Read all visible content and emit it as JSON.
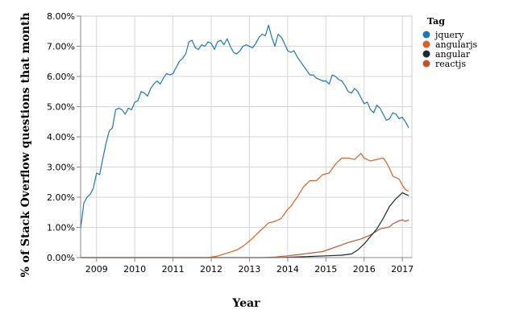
{
  "chart_data": {
    "type": "line",
    "xlabel": "Year",
    "ylabel": "% of Stack Overflow questions that month",
    "x_ticks": [
      "2009",
      "2010",
      "2011",
      "2012",
      "2013",
      "2014",
      "2015",
      "2016",
      "2017"
    ],
    "y_ticks": [
      "0.00%",
      "1.00%",
      "2.00%",
      "3.00%",
      "4.00%",
      "5.00%",
      "6.00%",
      "7.00%",
      "8.00%"
    ],
    "xlim": [
      "2008-08",
      "2017-04"
    ],
    "ylim": [
      0,
      8
    ],
    "grid": true,
    "legend": {
      "title": "Tag",
      "position": "right"
    },
    "series": [
      {
        "name": "jquery",
        "color": "#1f77b4",
        "points": [
          [
            "2008-08",
            0.95
          ],
          [
            "2008-09",
            1.8
          ],
          [
            "2008-10",
            2.0
          ],
          [
            "2008-11",
            2.1
          ],
          [
            "2008-12",
            2.3
          ],
          [
            "2009-01",
            2.8
          ],
          [
            "2009-02",
            2.75
          ],
          [
            "2009-03",
            3.3
          ],
          [
            "2009-04",
            3.8
          ],
          [
            "2009-05",
            4.2
          ],
          [
            "2009-06",
            4.3
          ],
          [
            "2009-07",
            4.9
          ],
          [
            "2009-08",
            4.95
          ],
          [
            "2009-09",
            4.9
          ],
          [
            "2009-10",
            4.75
          ],
          [
            "2009-11",
            4.95
          ],
          [
            "2009-12",
            4.9
          ],
          [
            "2010-01",
            5.15
          ],
          [
            "2010-02",
            5.2
          ],
          [
            "2010-03",
            5.5
          ],
          [
            "2010-04",
            5.45
          ],
          [
            "2010-05",
            5.35
          ],
          [
            "2010-06",
            5.6
          ],
          [
            "2010-07",
            5.75
          ],
          [
            "2010-08",
            5.85
          ],
          [
            "2010-09",
            5.75
          ],
          [
            "2010-10",
            5.95
          ],
          [
            "2010-11",
            6.1
          ],
          [
            "2010-12",
            6.05
          ],
          [
            "2011-01",
            6.1
          ],
          [
            "2011-02",
            6.3
          ],
          [
            "2011-03",
            6.5
          ],
          [
            "2011-04",
            6.6
          ],
          [
            "2011-05",
            6.75
          ],
          [
            "2011-06",
            7.15
          ],
          [
            "2011-07",
            7.2
          ],
          [
            "2011-08",
            6.95
          ],
          [
            "2011-09",
            6.9
          ],
          [
            "2011-10",
            7.05
          ],
          [
            "2011-11",
            7.0
          ],
          [
            "2011-12",
            7.15
          ],
          [
            "2012-01",
            7.1
          ],
          [
            "2012-02",
            6.9
          ],
          [
            "2012-03",
            7.15
          ],
          [
            "2012-04",
            7.2
          ],
          [
            "2012-05",
            7.05
          ],
          [
            "2012-06",
            7.25
          ],
          [
            "2012-07",
            7.0
          ],
          [
            "2012-08",
            6.8
          ],
          [
            "2012-09",
            6.75
          ],
          [
            "2012-10",
            6.85
          ],
          [
            "2012-11",
            7.0
          ],
          [
            "2012-12",
            7.05
          ],
          [
            "2013-01",
            7.0
          ],
          [
            "2013-02",
            6.95
          ],
          [
            "2013-03",
            7.1
          ],
          [
            "2013-04",
            7.3
          ],
          [
            "2013-05",
            7.4
          ],
          [
            "2013-06",
            7.35
          ],
          [
            "2013-07",
            7.7
          ],
          [
            "2013-08",
            7.3
          ],
          [
            "2013-09",
            7.0
          ],
          [
            "2013-10",
            7.4
          ],
          [
            "2013-11",
            7.3
          ],
          [
            "2013-12",
            7.1
          ],
          [
            "2014-01",
            6.85
          ],
          [
            "2014-02",
            6.8
          ],
          [
            "2014-03",
            6.85
          ],
          [
            "2014-04",
            6.65
          ],
          [
            "2014-05",
            6.5
          ],
          [
            "2014-06",
            6.35
          ],
          [
            "2014-07",
            6.2
          ],
          [
            "2014-08",
            6.05
          ],
          [
            "2014-09",
            6.05
          ],
          [
            "2014-10",
            5.95
          ],
          [
            "2014-11",
            5.9
          ],
          [
            "2014-12",
            5.85
          ],
          [
            "2015-01",
            5.85
          ],
          [
            "2015-02",
            5.75
          ],
          [
            "2015-03",
            6.05
          ],
          [
            "2015-04",
            6.0
          ],
          [
            "2015-05",
            5.9
          ],
          [
            "2015-06",
            5.85
          ],
          [
            "2015-07",
            5.7
          ],
          [
            "2015-08",
            5.5
          ],
          [
            "2015-09",
            5.45
          ],
          [
            "2015-10",
            5.6
          ],
          [
            "2015-11",
            5.5
          ],
          [
            "2015-12",
            5.3
          ],
          [
            "2016-01",
            5.1
          ],
          [
            "2016-02",
            5.15
          ],
          [
            "2016-03",
            4.9
          ],
          [
            "2016-04",
            4.8
          ],
          [
            "2016-05",
            5.05
          ],
          [
            "2016-06",
            4.95
          ],
          [
            "2016-07",
            4.75
          ],
          [
            "2016-08",
            4.55
          ],
          [
            "2016-09",
            4.6
          ],
          [
            "2016-10",
            4.8
          ],
          [
            "2016-11",
            4.75
          ],
          [
            "2016-12",
            4.6
          ],
          [
            "2017-01",
            4.65
          ],
          [
            "2017-02",
            4.5
          ],
          [
            "2017-03",
            4.3
          ]
        ]
      },
      {
        "name": "angularjs",
        "color": "#d95f24",
        "points": [
          [
            "2008-08",
            0.0
          ],
          [
            "2011-12",
            0.0
          ],
          [
            "2012-03",
            0.05
          ],
          [
            "2012-06",
            0.15
          ],
          [
            "2012-09",
            0.25
          ],
          [
            "2012-11",
            0.38
          ],
          [
            "2013-01",
            0.55
          ],
          [
            "2013-03",
            0.75
          ],
          [
            "2013-05",
            0.95
          ],
          [
            "2013-07",
            1.15
          ],
          [
            "2013-09",
            1.2
          ],
          [
            "2013-11",
            1.3
          ],
          [
            "2014-01",
            1.6
          ],
          [
            "2014-02",
            1.7
          ],
          [
            "2014-04",
            2.0
          ],
          [
            "2014-06",
            2.35
          ],
          [
            "2014-08",
            2.55
          ],
          [
            "2014-10",
            2.55
          ],
          [
            "2014-12",
            2.75
          ],
          [
            "2015-02",
            2.8
          ],
          [
            "2015-04",
            3.1
          ],
          [
            "2015-06",
            3.3
          ],
          [
            "2015-08",
            3.3
          ],
          [
            "2015-10",
            3.25
          ],
          [
            "2015-12",
            3.45
          ],
          [
            "2016-01",
            3.3
          ],
          [
            "2016-03",
            3.2
          ],
          [
            "2016-05",
            3.25
          ],
          [
            "2016-07",
            3.3
          ],
          [
            "2016-08",
            3.15
          ],
          [
            "2016-09",
            2.95
          ],
          [
            "2016-10",
            2.7
          ],
          [
            "2016-12",
            2.6
          ],
          [
            "2017-01",
            2.4
          ],
          [
            "2017-02",
            2.25
          ],
          [
            "2017-03",
            2.2
          ]
        ]
      },
      {
        "name": "angular",
        "color": "#1b2a33",
        "points": [
          [
            "2008-08",
            0.0
          ],
          [
            "2013-10",
            0.0
          ],
          [
            "2014-01",
            0.01
          ],
          [
            "2014-06",
            0.03
          ],
          [
            "2015-01",
            0.06
          ],
          [
            "2015-06",
            0.08
          ],
          [
            "2015-09",
            0.12
          ],
          [
            "2015-11",
            0.25
          ],
          [
            "2016-01",
            0.45
          ],
          [
            "2016-03",
            0.7
          ],
          [
            "2016-05",
            0.95
          ],
          [
            "2016-07",
            1.3
          ],
          [
            "2016-09",
            1.7
          ],
          [
            "2016-11",
            1.95
          ],
          [
            "2017-01",
            2.15
          ],
          [
            "2017-02",
            2.1
          ],
          [
            "2017-03",
            2.05
          ]
        ]
      },
      {
        "name": "reactjs",
        "color": "#c0532a",
        "points": [
          [
            "2008-08",
            0.0
          ],
          [
            "2013-05",
            0.0
          ],
          [
            "2013-09",
            0.02
          ],
          [
            "2014-01",
            0.06
          ],
          [
            "2014-06",
            0.12
          ],
          [
            "2014-12",
            0.2
          ],
          [
            "2015-04",
            0.35
          ],
          [
            "2015-08",
            0.5
          ],
          [
            "2015-12",
            0.62
          ],
          [
            "2016-03",
            0.75
          ],
          [
            "2016-06",
            0.95
          ],
          [
            "2016-09",
            1.02
          ],
          [
            "2016-10",
            1.12
          ],
          [
            "2016-12",
            1.22
          ],
          [
            "2017-01",
            1.25
          ],
          [
            "2017-02",
            1.2
          ],
          [
            "2017-03",
            1.25
          ]
        ]
      }
    ]
  }
}
